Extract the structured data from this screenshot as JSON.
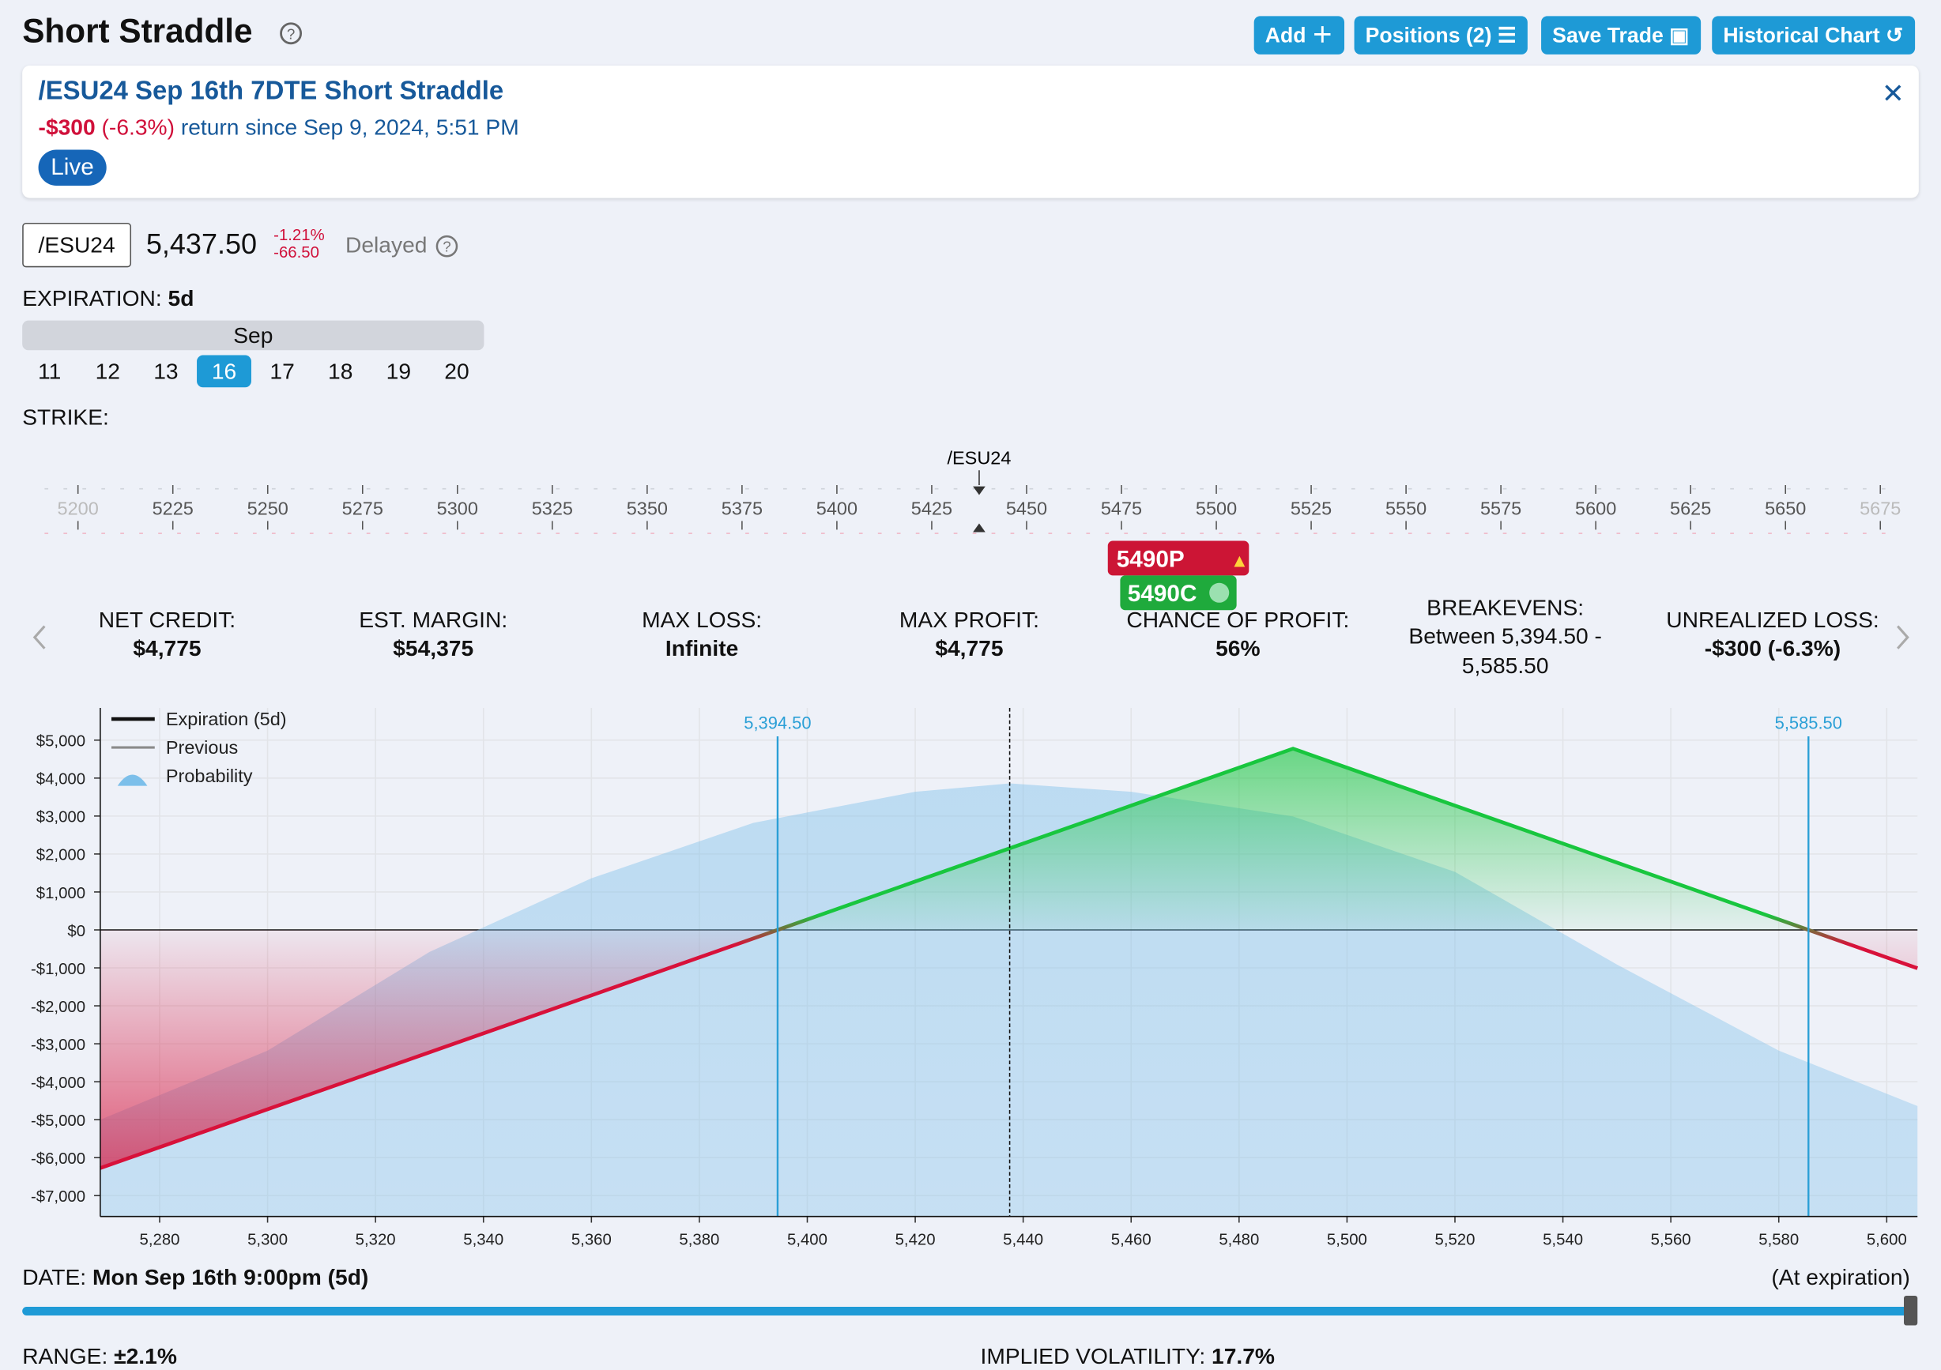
{
  "header": {
    "title": "Short Straddle",
    "buttons": [
      "Add",
      "Positions (2)",
      "Save Trade",
      "Historical Chart"
    ]
  },
  "position": {
    "name": "/ESU24 Sep 16th 7DTE Short Straddle",
    "return": "-$300",
    "return_pct": "(-6.3%)",
    "since": "return since Sep 9, 2024, 5:51 PM",
    "status": "Live"
  },
  "quote": {
    "symbol": "/ESU24",
    "price": "5,437.50",
    "change_pct": "-1.21%",
    "change": "-66.50",
    "feed": "Delayed"
  },
  "expiration": {
    "label": "EXPIRATION:",
    "value": "5d",
    "month": "Sep",
    "days": [
      "11",
      "12",
      "13",
      "16",
      "17",
      "18",
      "19",
      "20"
    ],
    "selected": 3
  },
  "strike": {
    "label": "STRIKE:",
    "underlying": "/ESU24",
    "underlying_price": 5437.5,
    "strikes": [
      5200,
      5225,
      5250,
      5275,
      5300,
      5325,
      5350,
      5375,
      5400,
      5425,
      5450,
      5475,
      5500,
      5525,
      5550,
      5575,
      5600,
      5625,
      5650,
      5675
    ],
    "legs": [
      "5490P",
      "5490C"
    ],
    "leg_strike": 5490
  },
  "stats": [
    {
      "label": "NET CREDIT:",
      "value": "$4,775"
    },
    {
      "label": "EST. MARGIN:",
      "value": "$54,375"
    },
    {
      "label": "MAX LOSS:",
      "value": "Infinite"
    },
    {
      "label": "MAX PROFIT:",
      "value": "$4,775"
    },
    {
      "label": "CHANCE OF PROFIT:",
      "value": "56%"
    },
    {
      "label": "BREAKEVENS:",
      "value": "Between 5,394.50 - 5,585.50"
    },
    {
      "label": "UNREALIZED LOSS:",
      "value": "-$300 (-6.3%)"
    }
  ],
  "chart": {
    "type": "line",
    "xlim": [
      5269,
      5605.7
    ],
    "ylim": [
      -7550,
      5850
    ],
    "xticks": [
      {
        "value": 5280,
        "label": "5,280"
      },
      {
        "value": 5300,
        "label": "5,300"
      },
      {
        "value": 5320,
        "label": "5,320"
      },
      {
        "value": 5340,
        "label": "5,340"
      },
      {
        "value": 5360,
        "label": "5,360"
      },
      {
        "value": 5380,
        "label": "5,380"
      },
      {
        "value": 5400,
        "label": "5,400"
      },
      {
        "value": 5420,
        "label": "5,420"
      },
      {
        "value": 5440,
        "label": "5,440"
      },
      {
        "value": 5460,
        "label": "5,460"
      },
      {
        "value": 5480,
        "label": "5,480"
      },
      {
        "value": 5500,
        "label": "5,500"
      },
      {
        "value": 5520,
        "label": "5,520"
      },
      {
        "value": 5540,
        "label": "5,540"
      },
      {
        "value": 5560,
        "label": "5,560"
      },
      {
        "value": 5580,
        "label": "5,580"
      },
      {
        "value": 5600,
        "label": "5,600"
      }
    ],
    "yticks": [
      {
        "value": 5000,
        "label": "$5,000"
      },
      {
        "value": 4000,
        "label": "$4,000"
      },
      {
        "value": 3000,
        "label": "$3,000"
      },
      {
        "value": 2000,
        "label": "$2,000"
      },
      {
        "value": 1000,
        "label": "$1,000"
      },
      {
        "value": 0,
        "label": "$0"
      },
      {
        "value": -1000,
        "label": "-$1,000"
      },
      {
        "value": -2000,
        "label": "-$2,000"
      },
      {
        "value": -3000,
        "label": "-$3,000"
      },
      {
        "value": -4000,
        "label": "-$4,000"
      },
      {
        "value": -5000,
        "label": "-$5,000"
      },
      {
        "value": -6000,
        "label": "-$6,000"
      },
      {
        "value": -7000,
        "label": "-$7,000"
      }
    ],
    "grid": true,
    "profit_color": "#18c63e",
    "loss_color": "#d8113a",
    "series": [
      {
        "name": "Expiration (5d)",
        "color": "#111111",
        "x": [
          5269,
          5490,
          5605.7
        ],
        "values": [
          -6275,
          4775,
          -1010
        ]
      },
      {
        "name": "Previous",
        "color": "#8a8a8a",
        "x": [],
        "values": []
      },
      {
        "name": "Probability",
        "color": "#7cbfea",
        "x": [
          5269,
          5300,
          5330,
          5360,
          5390,
          5420,
          5437.5,
          5460,
          5490,
          5520,
          5550,
          5580,
          5605.7
        ],
        "values": [
          -5000,
          -3180,
          -580,
          1360,
          2820,
          3640,
          3860,
          3640,
          2990,
          1530,
          -910,
          -3180,
          -4640
        ]
      }
    ],
    "breakevens": [
      {
        "value": 5394.5,
        "label": "5,394.50"
      },
      {
        "value": 5585.5,
        "label": "5,585.50"
      }
    ],
    "current_price": 5437.5,
    "breakeven_color": "#2a9fd6"
  },
  "date": {
    "label": "DATE:",
    "value": "Mon Sep 16th 9:00pm (5d)",
    "note": "(At expiration)"
  },
  "footer": {
    "range_label": "RANGE:",
    "range": "±2.1%",
    "iv_label": "IMPLIED VOLATILITY:",
    "iv": "17.7%"
  }
}
